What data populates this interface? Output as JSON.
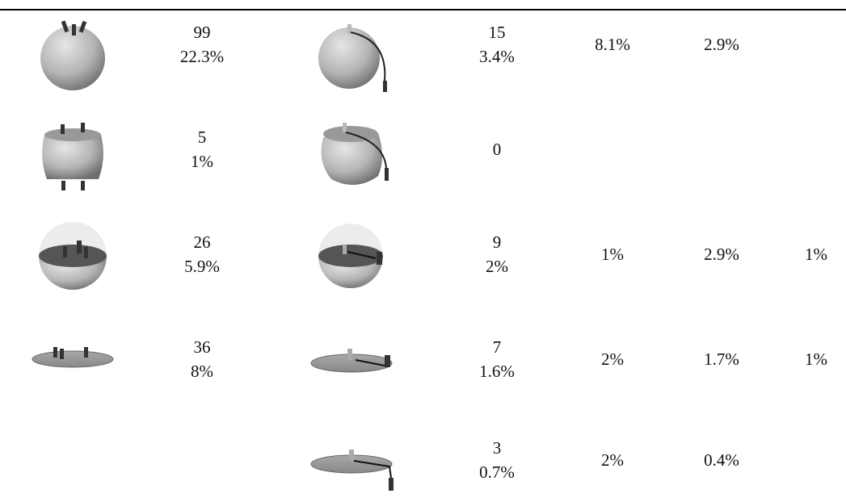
{
  "table": {
    "rows": [
      {
        "left": {
          "count": "99",
          "percent": "22.3%"
        },
        "right": {
          "count": "15",
          "percent": "3.4%"
        },
        "extra": [
          "8.1%",
          "2.9%"
        ]
      },
      {
        "left": {
          "count": "5",
          "percent": "1%"
        },
        "right": {
          "count": "0"
        }
      },
      {
        "left": {
          "count": "26",
          "percent": "5.9%"
        },
        "right": {
          "count": "9",
          "percent": "2%"
        },
        "extra": [
          "1%",
          "2.9%",
          "1%"
        ]
      },
      {
        "left": {
          "count": "36",
          "percent": "8%"
        },
        "right": {
          "count": "7",
          "percent": "1.6%"
        },
        "extra": [
          "2%",
          "1.7%",
          "1%"
        ]
      },
      {
        "right": {
          "count": "3",
          "percent": "0.7%"
        },
        "extra": [
          "2%",
          "0.4%"
        ]
      }
    ]
  }
}
